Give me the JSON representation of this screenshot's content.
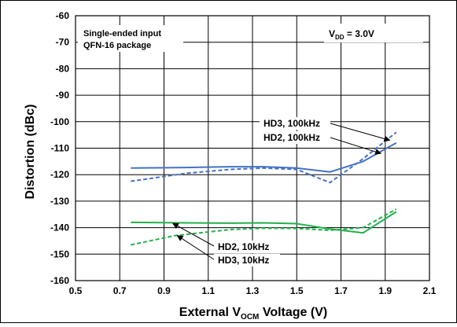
{
  "chart_data": {
    "type": "line",
    "title": "",
    "xlabel": {
      "prefix": "External V",
      "sub": "OCM",
      "suffix": " Voltage (V)"
    },
    "ylabel": "Distortion (dBc)",
    "xlim": [
      0.5,
      2.1
    ],
    "ylim": [
      -160,
      -60
    ],
    "xticks": [
      0.5,
      0.7,
      0.9,
      1.1,
      1.3,
      1.5,
      1.7,
      1.9,
      2.1
    ],
    "xtick_labels": [
      "0.5",
      "0.7",
      "0.9",
      "1.1",
      "1.3",
      "1.5",
      "1.7",
      "1.9",
      "2.1"
    ],
    "yticks": [
      -60,
      -70,
      -80,
      -90,
      -100,
      -110,
      -120,
      -130,
      -140,
      -150,
      -160
    ],
    "ytick_labels": [
      "-60",
      "-70",
      "-80",
      "-90",
      "-100",
      "-110",
      "-120",
      "-130",
      "-140",
      "-150",
      "-160"
    ],
    "grid": true,
    "series": [
      {
        "name": "HD2, 100kHz",
        "color": "#4472C4",
        "dash": "solid",
        "x": [
          0.75,
          1.0,
          1.2,
          1.35,
          1.5,
          1.65,
          1.8,
          1.95
        ],
        "y": [
          -117.5,
          -117.3,
          -117.0,
          -117.0,
          -117.5,
          -119,
          -115,
          -108
        ]
      },
      {
        "name": "HD3, 100kHz",
        "color": "#4472C4",
        "dash": "dashed",
        "x": [
          0.75,
          1.0,
          1.2,
          1.35,
          1.5,
          1.65,
          1.8,
          1.95
        ],
        "y": [
          -122.5,
          -119.5,
          -118,
          -117.5,
          -118,
          -123,
          -114,
          -104
        ]
      },
      {
        "name": "HD2, 10kHz",
        "color": "#22B14C",
        "dash": "solid",
        "x": [
          0.75,
          1.0,
          1.2,
          1.35,
          1.5,
          1.65,
          1.8,
          1.95
        ],
        "y": [
          -138,
          -138.2,
          -138.3,
          -138.2,
          -138.5,
          -140.5,
          -142,
          -134
        ]
      },
      {
        "name": "HD3, 10kHz",
        "color": "#22B14C",
        "dash": "dashed",
        "x": [
          0.75,
          0.95,
          1.2,
          1.35,
          1.5,
          1.65,
          1.8,
          1.95
        ],
        "y": [
          -146.5,
          -143,
          -140.7,
          -140.2,
          -140.3,
          -141,
          -140,
          -133
        ]
      }
    ],
    "annotations": {
      "note_line1": "Single-ended input",
      "note_line2": "QFN-16 package",
      "vdd": {
        "prefix": "V",
        "sub": "DD",
        "suffix": " = 3.0V"
      },
      "labels": [
        {
          "text": "HD3, 100kHz",
          "series": "HD3, 100kHz",
          "target": [
            1.92,
            -107
          ]
        },
        {
          "text": "HD2, 100kHz",
          "series": "HD2, 100kHz",
          "target": [
            1.88,
            -112
          ]
        },
        {
          "text": "HD2, 10kHz",
          "series": "HD2, 10kHz",
          "target": [
            0.94,
            -138.4
          ]
        },
        {
          "text": "HD3, 10kHz",
          "series": "HD3, 10kHz",
          "target": [
            0.96,
            -143
          ]
        }
      ]
    }
  }
}
